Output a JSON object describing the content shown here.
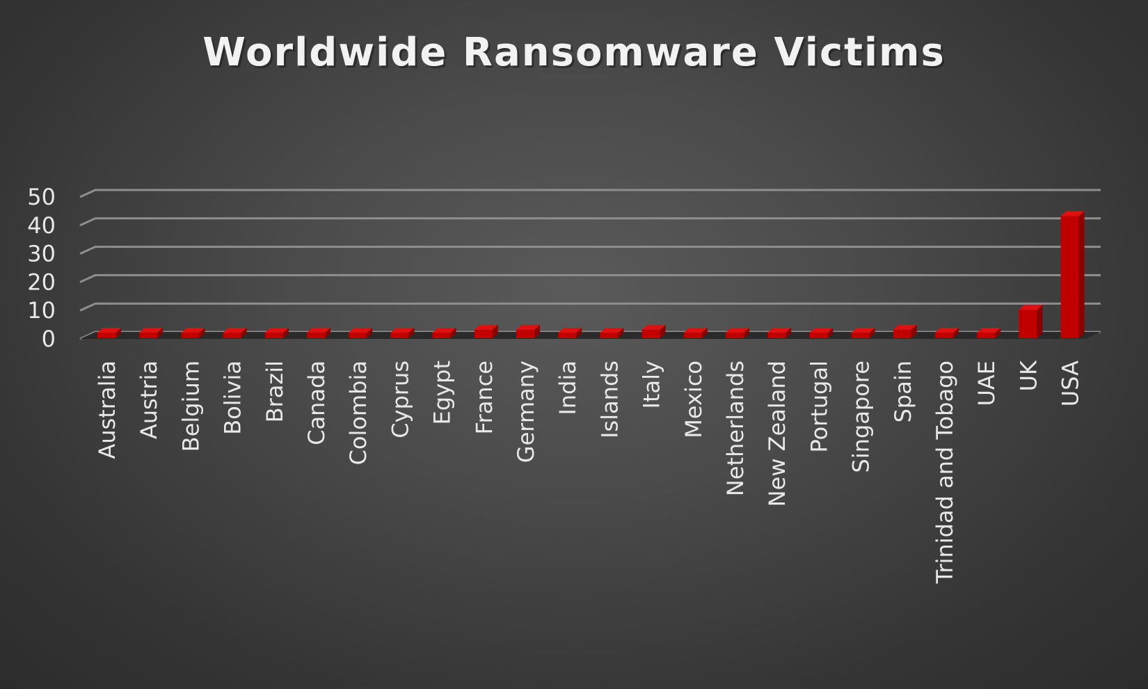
{
  "chart_data": {
    "type": "bar",
    "title": "Worldwide Ransomware Victims",
    "xlabel": "",
    "ylabel": "",
    "ylim": [
      0,
      50
    ],
    "yticks": [
      0,
      10,
      20,
      30,
      40,
      50
    ],
    "grid": true,
    "legend": "none",
    "bar_color": "#c00000",
    "categories": [
      "Australia",
      "Austria",
      "Belgium",
      "Bolivia",
      "Brazil",
      "Canada",
      "Colombia",
      "Cyprus",
      "Egypt",
      "France",
      "Germany",
      "India",
      "Islands",
      "Italy",
      "Mexico",
      "Netherlands",
      "New Zealand",
      "Portugal",
      "Singapore",
      "Spain",
      "Trinidad and Tobago",
      "UAE",
      "UK",
      "USA"
    ],
    "values": [
      1,
      2,
      1,
      1,
      1,
      2,
      1,
      1,
      1,
      3,
      3,
      1,
      1,
      3,
      1,
      1,
      1,
      1,
      1,
      3,
      1,
      1,
      10,
      43
    ]
  }
}
